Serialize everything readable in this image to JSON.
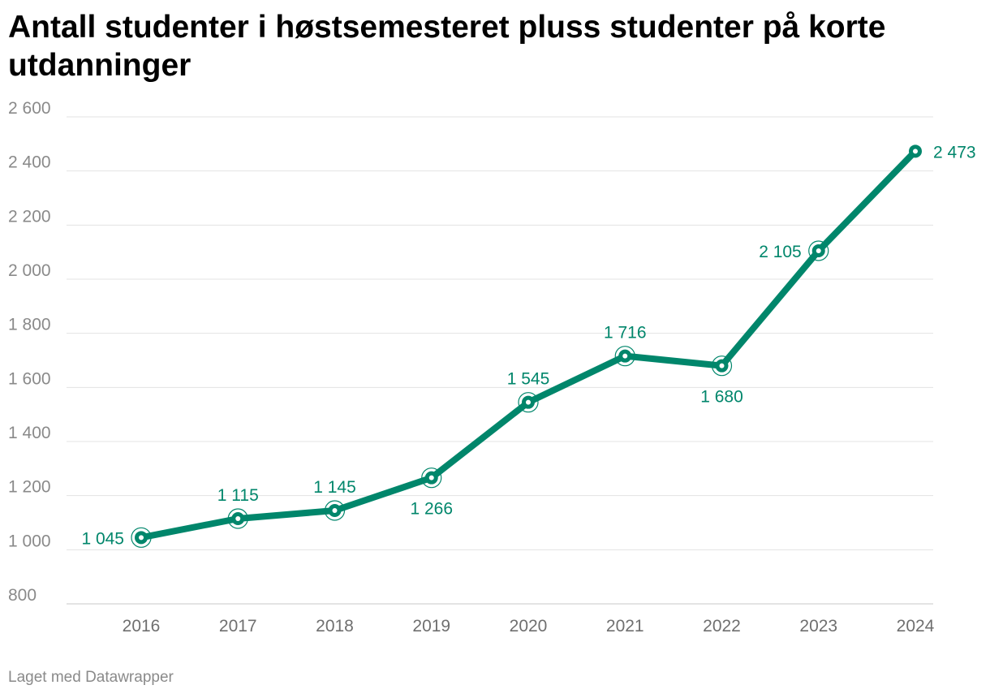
{
  "title": "Antall studenter i høstsemesteret pluss studenter på korte utdanninger",
  "footer": "Laget med Datawrapper",
  "colors": {
    "series": "#00866b",
    "grid": "#e3e3e3",
    "text_muted": "#8a8a8a"
  },
  "chart_data": {
    "type": "line",
    "title": "Antall studenter i høstsemesteret pluss studenter på korte utdanninger",
    "x": [
      "2016",
      "2017",
      "2018",
      "2019",
      "2020",
      "2021",
      "2022",
      "2023",
      "2024"
    ],
    "series": [
      {
        "values": [
          1045,
          1115,
          1145,
          1266,
          1545,
          1716,
          1680,
          2105,
          2473
        ]
      }
    ],
    "data_labels": [
      "1 045",
      "1 115",
      "1 145",
      "1 266",
      "1 545",
      "1 716",
      "1 680",
      "2 105",
      "2 473"
    ],
    "label_positions": [
      "left",
      "above",
      "above",
      "below",
      "above",
      "above",
      "below",
      "left",
      "right"
    ],
    "ylim": [
      800,
      2600
    ],
    "yticks": [
      800,
      1000,
      1200,
      1400,
      1600,
      1800,
      2000,
      2200,
      2400,
      2600
    ],
    "ytick_labels": [
      "800",
      "1 000",
      "1 200",
      "1 400",
      "1 600",
      "1 800",
      "2 000",
      "2 200",
      "2 400",
      "2 600"
    ],
    "grid": true,
    "legend": "none"
  }
}
